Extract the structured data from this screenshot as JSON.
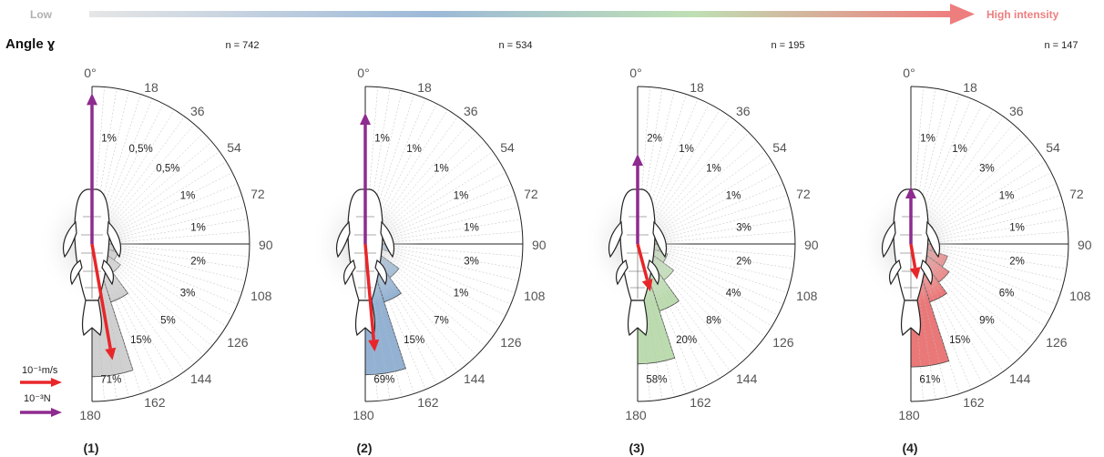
{
  "intensity_scale": {
    "low_label": "Low",
    "high_label": "High intensity"
  },
  "title": "Angle ɣ",
  "legend": {
    "velocity_label": "10⁻¹m/s",
    "force_label": "10⁻³N"
  },
  "colors": {
    "velocity_arrow": "#e8262a",
    "force_arrow": "#8e2b8f",
    "scale_low": "#e4e4e4",
    "scale_high": "#ee7e7e",
    "text_gray": "#555555"
  },
  "chart_data": [
    {
      "type": "polar-bar",
      "panel_label": "(1)",
      "n_label": "n = 742",
      "angle_ticks": [
        "0°",
        "18",
        "36",
        "54",
        "72",
        "90",
        "108",
        "126",
        "144",
        "162",
        "180"
      ],
      "sectors": [
        "0-18",
        "18-36",
        "36-54",
        "54-72",
        "72-90",
        "90-108",
        "108-126",
        "126-144",
        "144-162",
        "162-180"
      ],
      "percent_labels": [
        "1%",
        "0,5%",
        "0,5%",
        "1%",
        "1%",
        "2%",
        "3%",
        "5%",
        "15%",
        "71%"
      ],
      "values": [
        1,
        0.5,
        0.5,
        1,
        1,
        2,
        3,
        5,
        15,
        71
      ],
      "color": "#d0d0d0",
      "velocity_arrow": {
        "direction_deg": 170,
        "length": 0.72
      },
      "force_arrow": {
        "direction_deg": 0,
        "length": 0.92
      }
    },
    {
      "type": "polar-bar",
      "panel_label": "(2)",
      "n_label": "n = 534",
      "angle_ticks": [
        "0°",
        "18",
        "36",
        "54",
        "72",
        "90",
        "108",
        "126",
        "144",
        "162",
        "180"
      ],
      "sectors": [
        "0-18",
        "18-36",
        "36-54",
        "54-72",
        "72-90",
        "90-108",
        "108-126",
        "126-144",
        "144-162",
        "162-180"
      ],
      "percent_labels": [
        "1%",
        "1%",
        "1%",
        "1%",
        "1%",
        "3%",
        "1%",
        "7%",
        "15%",
        "69%"
      ],
      "values": [
        1,
        1,
        1,
        1,
        1,
        3,
        1,
        7,
        15,
        69
      ],
      "color": "#93b2d3",
      "velocity_arrow": {
        "direction_deg": 175,
        "length": 0.66
      },
      "force_arrow": {
        "direction_deg": 0,
        "length": 0.8
      }
    },
    {
      "type": "polar-bar",
      "panel_label": "(3)",
      "n_label": "n = 195",
      "angle_ticks": [
        "0°",
        "18",
        "36",
        "54",
        "72",
        "90",
        "108",
        "126",
        "144",
        "162",
        "180"
      ],
      "sectors": [
        "0-18",
        "18-36",
        "36-54",
        "54-72",
        "72-90",
        "90-108",
        "108-126",
        "126-144",
        "144-162",
        "162-180"
      ],
      "percent_labels": [
        "2%",
        "1%",
        "1%",
        "1%",
        "3%",
        "2%",
        "4%",
        "8%",
        "20%",
        "58%"
      ],
      "values": [
        2,
        1,
        1,
        1,
        3,
        2,
        4,
        8,
        20,
        58
      ],
      "color": "#bcdcb0",
      "velocity_arrow": {
        "direction_deg": 165,
        "length": 0.3
      },
      "force_arrow": {
        "direction_deg": 0,
        "length": 0.55
      }
    },
    {
      "type": "polar-bar",
      "panel_label": "(4)",
      "n_label": "n = 147",
      "angle_ticks": [
        "0°",
        "18",
        "36",
        "54",
        "72",
        "90",
        "108",
        "126",
        "144",
        "162",
        "180"
      ],
      "sectors": [
        "0-18",
        "18-36",
        "36-54",
        "54-72",
        "72-90",
        "90-108",
        "108-126",
        "126-144",
        "144-162",
        "162-180"
      ],
      "percent_labels": [
        "1%",
        "1%",
        "3%",
        "1%",
        "1%",
        "2%",
        "6%",
        "9%",
        "15%",
        "61%"
      ],
      "values": [
        1,
        1,
        3,
        1,
        1,
        2,
        6,
        9,
        15,
        61
      ],
      "color": "#eb7878",
      "velocity_arrow": {
        "direction_deg": 170,
        "length": 0.22
      },
      "force_arrow": {
        "direction_deg": 0,
        "length": 0.35
      }
    }
  ]
}
